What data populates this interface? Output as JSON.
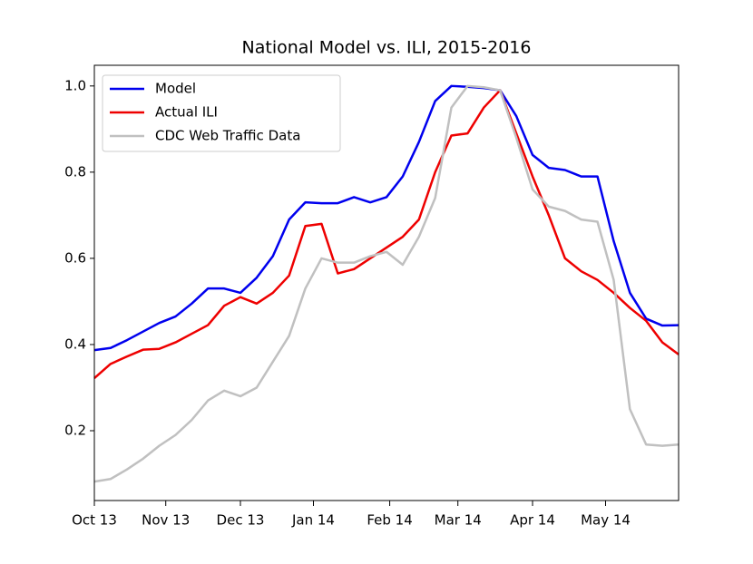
{
  "chart_data": {
    "type": "line",
    "title": "National Model vs. ILI, 2015-2016",
    "x": [
      0,
      1,
      2,
      3,
      4,
      5,
      6,
      7,
      8,
      9,
      10,
      11,
      12,
      13,
      14,
      15,
      16,
      17,
      18,
      19,
      20,
      21,
      22,
      23,
      24,
      25,
      26,
      27,
      28,
      29,
      30,
      31,
      32,
      33,
      34,
      35,
      36
    ],
    "series": [
      {
        "name": "Model",
        "color": "#0000ee",
        "values": [
          0.387,
          0.392,
          0.41,
          0.43,
          0.45,
          0.465,
          0.495,
          0.53,
          0.53,
          0.52,
          0.555,
          0.605,
          0.69,
          0.73,
          0.728,
          0.728,
          0.742,
          0.73,
          0.742,
          0.79,
          0.87,
          0.965,
          1.0,
          0.998,
          0.995,
          0.99,
          0.93,
          0.84,
          0.81,
          0.805,
          0.79,
          0.79,
          0.64,
          0.52,
          0.46,
          0.444,
          0.445
        ]
      },
      {
        "name": "Actual ILI",
        "color": "#ee0000",
        "values": [
          0.322,
          0.355,
          0.372,
          0.388,
          0.39,
          0.405,
          0.425,
          0.445,
          0.49,
          0.51,
          0.495,
          0.52,
          0.56,
          0.675,
          0.68,
          0.565,
          0.575,
          0.6,
          0.625,
          0.65,
          0.69,
          0.8,
          0.885,
          0.89,
          0.95,
          0.99,
          0.89,
          0.79,
          0.7,
          0.6,
          0.57,
          0.55,
          0.52,
          0.485,
          0.455,
          0.405,
          0.377
        ]
      },
      {
        "name": "CDC Web Traffic Data",
        "color": "#c0c0c0",
        "values": [
          0.082,
          0.088,
          0.11,
          0.135,
          0.165,
          0.19,
          0.225,
          0.27,
          0.293,
          0.28,
          0.3,
          0.36,
          0.42,
          0.53,
          0.6,
          0.59,
          0.59,
          0.605,
          0.615,
          0.585,
          0.65,
          0.74,
          0.95,
          1.0,
          0.997,
          0.99,
          0.88,
          0.76,
          0.72,
          0.71,
          0.69,
          0.685,
          0.55,
          0.25,
          0.168,
          0.165,
          0.168
        ]
      }
    ],
    "xlim": [
      0,
      36
    ],
    "xticks": [
      {
        "value": 0,
        "label": "Oct 13"
      },
      {
        "value": 4.4,
        "label": "Nov 13"
      },
      {
        "value": 9.0,
        "label": "Dec 13"
      },
      {
        "value": 13.5,
        "label": "Jan 14"
      },
      {
        "value": 18.2,
        "label": "Feb 14"
      },
      {
        "value": 22.4,
        "label": "Mar 14"
      },
      {
        "value": 27.0,
        "label": "Apr 14"
      },
      {
        "value": 31.5,
        "label": "May 14"
      }
    ],
    "ylim": [
      0.038,
      1.048
    ],
    "yticks": [
      0.2,
      0.4,
      0.6,
      0.8,
      {
        "value": 1.0,
        "label": "1.0"
      }
    ],
    "legend": "upper left"
  }
}
